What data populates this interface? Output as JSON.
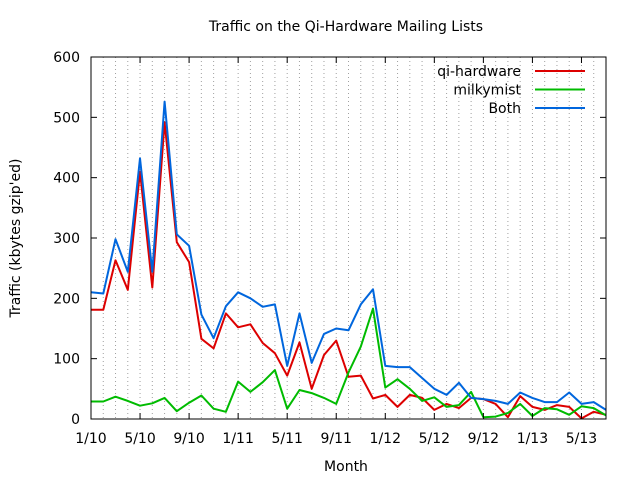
{
  "chart_data": {
    "type": "line",
    "title": "Traffic on the Qi-Hardware Mailing Lists",
    "xlabel": "Month",
    "ylabel": "Traffic (kbytes gzip'ed)",
    "ylim": [
      0,
      600
    ],
    "yticks": [
      0,
      100,
      200,
      300,
      400,
      500,
      600
    ],
    "x_start": "2010-01",
    "x_month_count": 43,
    "xticks": [
      {
        "label": "1/10",
        "index": 0
      },
      {
        "label": "5/10",
        "index": 4
      },
      {
        "label": "9/10",
        "index": 8
      },
      {
        "label": "1/11",
        "index": 12
      },
      {
        "label": "5/11",
        "index": 16
      },
      {
        "label": "9/11",
        "index": 20
      },
      {
        "label": "1/12",
        "index": 24
      },
      {
        "label": "5/12",
        "index": 28
      },
      {
        "label": "9/12",
        "index": 32
      },
      {
        "label": "1/13",
        "index": 36
      },
      {
        "label": "5/13",
        "index": 40
      }
    ],
    "grid": "vertical dotted lines at each month",
    "legend_position": "top-right",
    "series": [
      {
        "name": "qi-hardware",
        "color": "#dd0000",
        "values": [
          181,
          181,
          263,
          214,
          410,
          218,
          492,
          293,
          260,
          133,
          117,
          175,
          152,
          157,
          126,
          109,
          72,
          127,
          50,
          106,
          130,
          70,
          72,
          34,
          40,
          20,
          40,
          35,
          15,
          25,
          18,
          35,
          33,
          25,
          3,
          38,
          20,
          15,
          23,
          20,
          1,
          12,
          7
        ]
      },
      {
        "name": "milkymist",
        "color": "#00bb00",
        "values": [
          29,
          29,
          37,
          30,
          22,
          26,
          35,
          13,
          27,
          39,
          17,
          12,
          62,
          45,
          61,
          81,
          17,
          48,
          43,
          35,
          25,
          77,
          120,
          183,
          52,
          66,
          50,
          30,
          36,
          20,
          23,
          45,
          3,
          4,
          10,
          25,
          5,
          18,
          16,
          7,
          21,
          18,
          6
        ]
      },
      {
        "name": "Both",
        "color": "#0066dd",
        "values": [
          210,
          208,
          298,
          244,
          432,
          244,
          526,
          306,
          287,
          173,
          134,
          187,
          210,
          200,
          186,
          190,
          88,
          175,
          93,
          141,
          150,
          147,
          190,
          215,
          88,
          86,
          86,
          68,
          50,
          40,
          60,
          35,
          33,
          30,
          25,
          44,
          35,
          28,
          28,
          44,
          25,
          28,
          15
        ]
      }
    ]
  }
}
